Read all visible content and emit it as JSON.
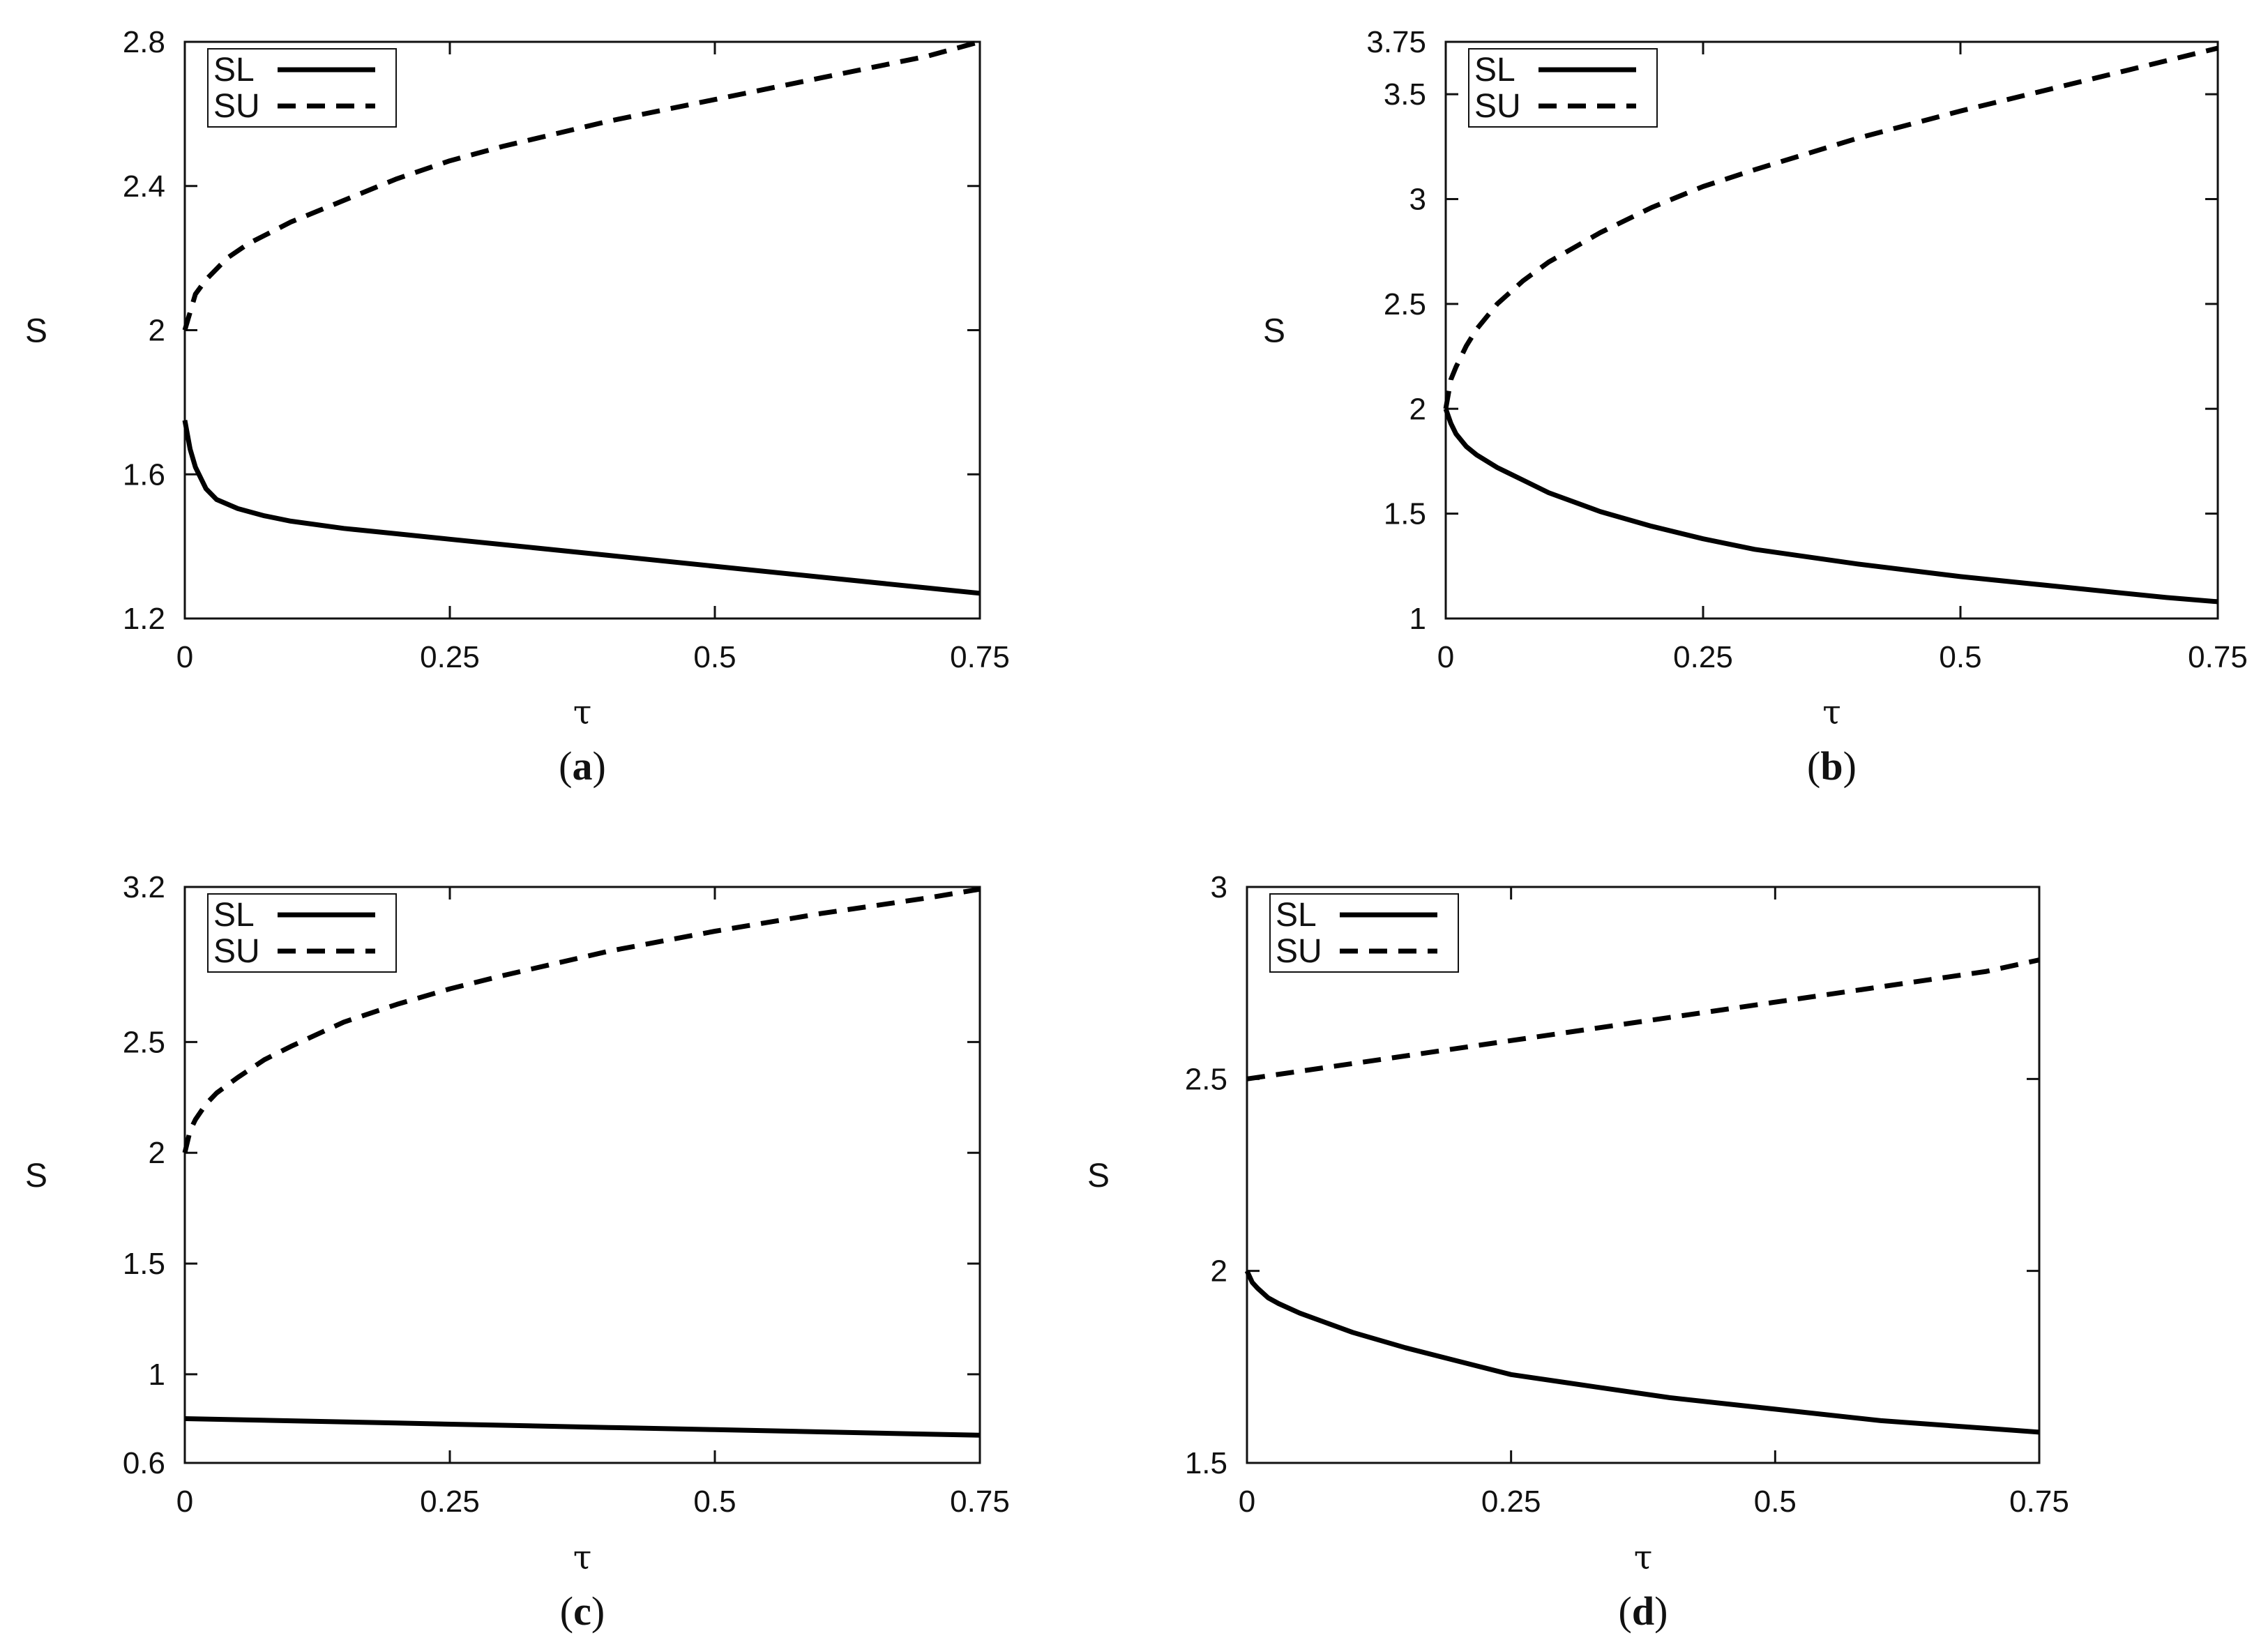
{
  "chart_data": [
    {
      "type": "line",
      "panel_label": "a",
      "xlabel": "τ",
      "ylabel": "S",
      "xlim": [
        0,
        0.75
      ],
      "ylim": [
        1.2,
        2.8
      ],
      "xticks": [
        "0",
        "0.25",
        "0.5",
        "0.75"
      ],
      "yticks": [
        "1.2",
        "1.6",
        "2",
        "2.4",
        "2.8"
      ],
      "legend_position": "top-left",
      "series": [
        {
          "name": "SL",
          "style": "solid",
          "x": [
            0,
            0.005,
            0.01,
            0.02,
            0.03,
            0.05,
            0.075,
            0.1,
            0.15,
            0.2,
            0.25,
            0.3,
            0.4,
            0.5,
            0.6,
            0.7,
            0.75
          ],
          "y": [
            1.75,
            1.67,
            1.62,
            1.56,
            1.53,
            1.505,
            1.485,
            1.47,
            1.45,
            1.435,
            1.42,
            1.405,
            1.375,
            1.345,
            1.315,
            1.285,
            1.27
          ]
        },
        {
          "name": "SU",
          "style": "dashed",
          "x": [
            0,
            0.01,
            0.02,
            0.04,
            0.06,
            0.1,
            0.15,
            0.2,
            0.25,
            0.3,
            0.4,
            0.5,
            0.6,
            0.7,
            0.75
          ],
          "y": [
            2.0,
            2.1,
            2.14,
            2.2,
            2.24,
            2.3,
            2.36,
            2.42,
            2.47,
            2.51,
            2.58,
            2.64,
            2.7,
            2.76,
            2.8
          ]
        }
      ]
    },
    {
      "type": "line",
      "panel_label": "b",
      "xlabel": "τ",
      "ylabel": "S",
      "xlim": [
        0,
        0.75
      ],
      "ylim": [
        1,
        3.75
      ],
      "xticks": [
        "0",
        "0.25",
        "0.5",
        "0.75"
      ],
      "yticks": [
        "1",
        "1.5",
        "2",
        "2.5",
        "3",
        "3.5",
        "3.75"
      ],
      "legend_position": "top-left",
      "series": [
        {
          "name": "SL",
          "style": "solid",
          "x": [
            0,
            0.005,
            0.01,
            0.02,
            0.03,
            0.05,
            0.075,
            0.1,
            0.15,
            0.2,
            0.25,
            0.3,
            0.4,
            0.5,
            0.6,
            0.7,
            0.75
          ],
          "y": [
            2.0,
            1.93,
            1.88,
            1.82,
            1.78,
            1.72,
            1.66,
            1.6,
            1.51,
            1.44,
            1.38,
            1.33,
            1.26,
            1.2,
            1.15,
            1.1,
            1.08
          ]
        },
        {
          "name": "SU",
          "style": "dashed",
          "x": [
            0,
            0.005,
            0.01,
            0.02,
            0.03,
            0.05,
            0.075,
            0.1,
            0.15,
            0.2,
            0.25,
            0.3,
            0.4,
            0.5,
            0.6,
            0.7,
            0.75
          ],
          "y": [
            2.0,
            2.14,
            2.2,
            2.3,
            2.38,
            2.5,
            2.61,
            2.7,
            2.84,
            2.96,
            3.06,
            3.14,
            3.29,
            3.42,
            3.54,
            3.66,
            3.72
          ]
        }
      ]
    },
    {
      "type": "line",
      "panel_label": "c",
      "xlabel": "τ",
      "ylabel": "S",
      "xlim": [
        0,
        0.75
      ],
      "ylim": [
        0.6,
        3.2
      ],
      "xticks": [
        "0",
        "0.25",
        "0.5",
        "0.75"
      ],
      "yticks": [
        "0.6",
        "1",
        "1.5",
        "2",
        "2.5",
        "3.2"
      ],
      "legend_position": "top-left",
      "series": [
        {
          "name": "SL",
          "style": "solid",
          "x": [
            0,
            0.1,
            0.2,
            0.3,
            0.4,
            0.5,
            0.6,
            0.7,
            0.75
          ],
          "y": [
            0.8,
            0.79,
            0.78,
            0.77,
            0.76,
            0.75,
            0.74,
            0.73,
            0.725
          ]
        },
        {
          "name": "SU",
          "style": "dashed",
          "x": [
            0,
            0.005,
            0.01,
            0.02,
            0.03,
            0.05,
            0.075,
            0.1,
            0.15,
            0.2,
            0.25,
            0.3,
            0.4,
            0.5,
            0.6,
            0.7,
            0.75
          ],
          "y": [
            2.0,
            2.1,
            2.15,
            2.22,
            2.27,
            2.34,
            2.42,
            2.48,
            2.59,
            2.67,
            2.74,
            2.8,
            2.91,
            3.0,
            3.08,
            3.15,
            3.19
          ]
        }
      ]
    },
    {
      "type": "line",
      "panel_label": "d",
      "xlabel": "τ",
      "ylabel": "S",
      "xlim": [
        0,
        0.75
      ],
      "ylim": [
        1.5,
        3
      ],
      "xticks": [
        "0",
        "0.25",
        "0.5",
        "0.75"
      ],
      "yticks": [
        "1.5",
        "2",
        "2.5",
        "3"
      ],
      "legend_position": "top-left",
      "series": [
        {
          "name": "SL",
          "style": "solid",
          "x": [
            0,
            0.005,
            0.01,
            0.02,
            0.03,
            0.05,
            0.075,
            0.1,
            0.15,
            0.2,
            0.25,
            0.3,
            0.4,
            0.5,
            0.6,
            0.7,
            0.75
          ],
          "y": [
            2.0,
            1.97,
            1.955,
            1.93,
            1.915,
            1.89,
            1.865,
            1.84,
            1.8,
            1.765,
            1.73,
            1.71,
            1.67,
            1.64,
            1.61,
            1.59,
            1.58
          ]
        },
        {
          "name": "SU",
          "style": "dashed",
          "x": [
            0,
            0.1,
            0.2,
            0.3,
            0.4,
            0.5,
            0.6,
            0.7,
            0.75
          ],
          "y": [
            2.5,
            2.54,
            2.58,
            2.62,
            2.66,
            2.7,
            2.74,
            2.78,
            2.81
          ]
        }
      ]
    }
  ]
}
